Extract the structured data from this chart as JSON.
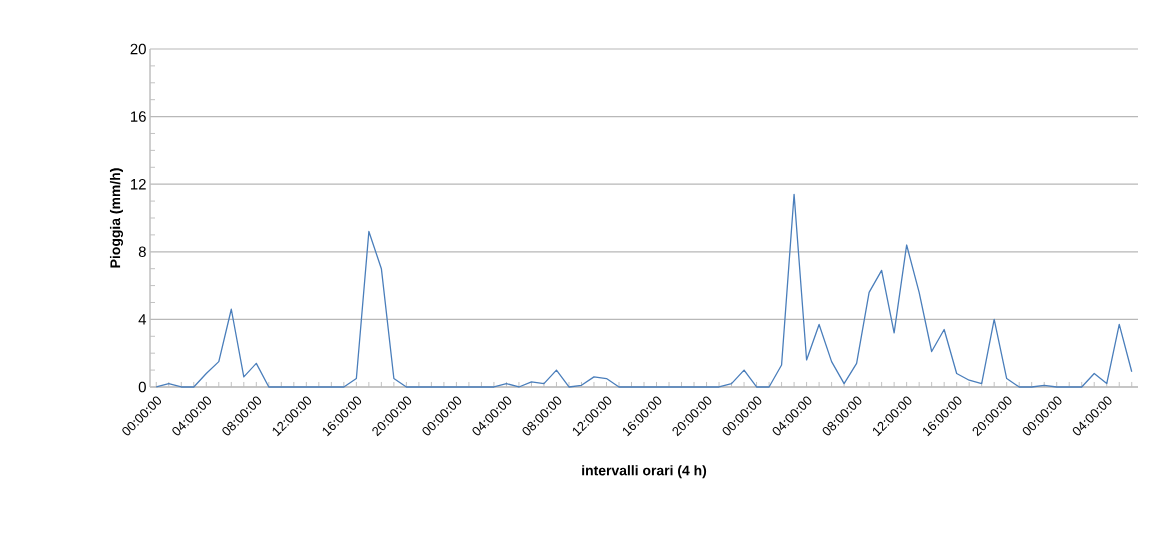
{
  "chart_data": {
    "type": "line",
    "xlabel": "intervalli orari (4 h)",
    "ylabel": "Pioggia (mm/h)",
    "categories": [
      "00:00:00",
      null,
      null,
      null,
      "04:00:00",
      null,
      null,
      null,
      "08:00:00",
      null,
      null,
      null,
      "12:00:00",
      null,
      null,
      null,
      "16:00:00",
      null,
      null,
      null,
      "20:00:00",
      null,
      null,
      null,
      "00:00:00",
      null,
      null,
      null,
      "04:00:00",
      null,
      null,
      null,
      "08:00:00",
      null,
      null,
      null,
      "12:00:00",
      null,
      null,
      null,
      "16:00:00",
      null,
      null,
      null,
      "20:00:00",
      null,
      null,
      null,
      "00:00:00",
      null,
      null,
      null,
      "04:00:00",
      null,
      null,
      null,
      "08:00:00",
      null,
      null,
      null,
      "12:00:00",
      null,
      null,
      null,
      "16:00:00",
      null,
      null,
      null,
      "20:00:00",
      null,
      null,
      null,
      "00:00:00",
      null,
      null,
      null,
      "04:00:00",
      null,
      null
    ],
    "series": [
      {
        "color": "#4a7ebb",
        "values": [
          0,
          0.2,
          0,
          0,
          0.8,
          1.5,
          4.6,
          0.6,
          1.4,
          0,
          0,
          0,
          0,
          0,
          0,
          0,
          0.5,
          9.2,
          7.0,
          0.5,
          0,
          0,
          0,
          0,
          0,
          0,
          0,
          0,
          0.2,
          0,
          0.3,
          0.2,
          1.0,
          0,
          0.1,
          0.6,
          0.5,
          0,
          0,
          0,
          0,
          0,
          0,
          0,
          0,
          0,
          0.2,
          1.0,
          0,
          0,
          1.3,
          11.4,
          1.6,
          3.7,
          1.5,
          0.2,
          1.4,
          5.6,
          6.9,
          3.2,
          8.4,
          5.6,
          2.1,
          3.4,
          0.8,
          0.4,
          0.2,
          4.0,
          0.5,
          0,
          0,
          0.1,
          0,
          0,
          0,
          0.8,
          0.2,
          3.7,
          0.9
        ]
      }
    ],
    "ylim": [
      0,
      20
    ],
    "yticks": [
      0,
      4,
      8,
      12,
      16,
      20
    ],
    "grid": "y",
    "marker": "none",
    "line_style": "solid"
  }
}
